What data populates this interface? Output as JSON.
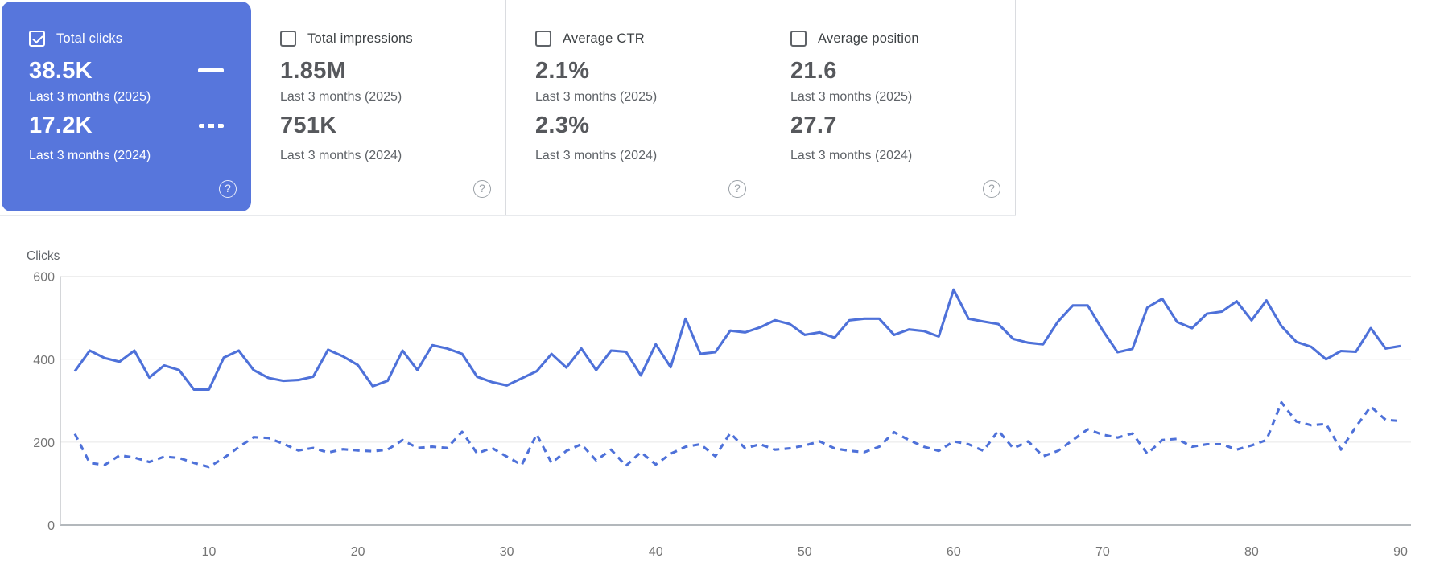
{
  "accent_color": "#5776DC",
  "cards": [
    {
      "label": "Total clicks",
      "checked": true,
      "selected": true,
      "value_2025": "38.5K",
      "period_2025": "Last 3 months (2025)",
      "value_2024": "17.2K",
      "period_2024": "Last 3 months (2024)",
      "help": "?"
    },
    {
      "label": "Total impressions",
      "checked": false,
      "selected": false,
      "value_2025": "1.85M",
      "period_2025": "Last 3 months (2025)",
      "value_2024": "751K",
      "period_2024": "Last 3 months (2024)",
      "help": "?"
    },
    {
      "label": "Average CTR",
      "checked": false,
      "selected": false,
      "value_2025": "2.1%",
      "period_2025": "Last 3 months (2025)",
      "value_2024": "2.3%",
      "period_2024": "Last 3 months (2024)",
      "help": "?"
    },
    {
      "label": "Average position",
      "checked": false,
      "selected": false,
      "value_2025": "21.6",
      "period_2025": "Last 3 months (2025)",
      "value_2024": "27.7",
      "period_2024": "Last 3 months (2024)",
      "help": "?"
    }
  ],
  "chart_data": {
    "type": "line",
    "title": "Clicks",
    "ylabel": "Clicks",
    "ylim": [
      0,
      600
    ],
    "yticks": [
      0,
      200,
      400,
      600
    ],
    "xticks": [
      10,
      20,
      30,
      40,
      50,
      60,
      70,
      80,
      90
    ],
    "x_range": [
      1,
      90
    ],
    "grid": "horizontal",
    "line_color": "#4e71d9",
    "series": [
      {
        "name": "Last 3 months (2025)",
        "style": "solid",
        "values": [
          371,
          421,
          403,
          394,
          421,
          356,
          385,
          374,
          327,
          327,
          404,
          421,
          374,
          355,
          348,
          350,
          358,
          423,
          407,
          386,
          335,
          348,
          421,
          374,
          434,
          426,
          413,
          358,
          345,
          337,
          354,
          371,
          413,
          380,
          426,
          374,
          421,
          418,
          361,
          436,
          381,
          498,
          413,
          417,
          469,
          465,
          477,
          494,
          485,
          459,
          465,
          452,
          494,
          498,
          498,
          459,
          472,
          468,
          455,
          568,
          498,
          491,
          485,
          449,
          440,
          436,
          491,
          530,
          530,
          470,
          417,
          425,
          525,
          546,
          490,
          475,
          510,
          515,
          540,
          494,
          542,
          480,
          442,
          430,
          400,
          420,
          418,
          475,
          426,
          432
        ]
      },
      {
        "name": "Last 3 months (2024)",
        "style": "dashed",
        "values": [
          220,
          150,
          145,
          168,
          163,
          152,
          165,
          162,
          150,
          140,
          162,
          188,
          212,
          210,
          196,
          180,
          186,
          175,
          183,
          180,
          178,
          182,
          205,
          186,
          189,
          186,
          225,
          173,
          186,
          165,
          145,
          219,
          150,
          179,
          195,
          156,
          182,
          143,
          176,
          146,
          172,
          189,
          195,
          166,
          222,
          185,
          195,
          182,
          185,
          192,
          202,
          185,
          179,
          176,
          189,
          224,
          205,
          189,
          179,
          202,
          195,
          179,
          228,
          185,
          202,
          166,
          179,
          205,
          231,
          218,
          211,
          221,
          172,
          205,
          208,
          189,
          195,
          195,
          182,
          192,
          205,
          296,
          250,
          241,
          244,
          182,
          237,
          286,
          254,
          251
        ]
      }
    ]
  }
}
